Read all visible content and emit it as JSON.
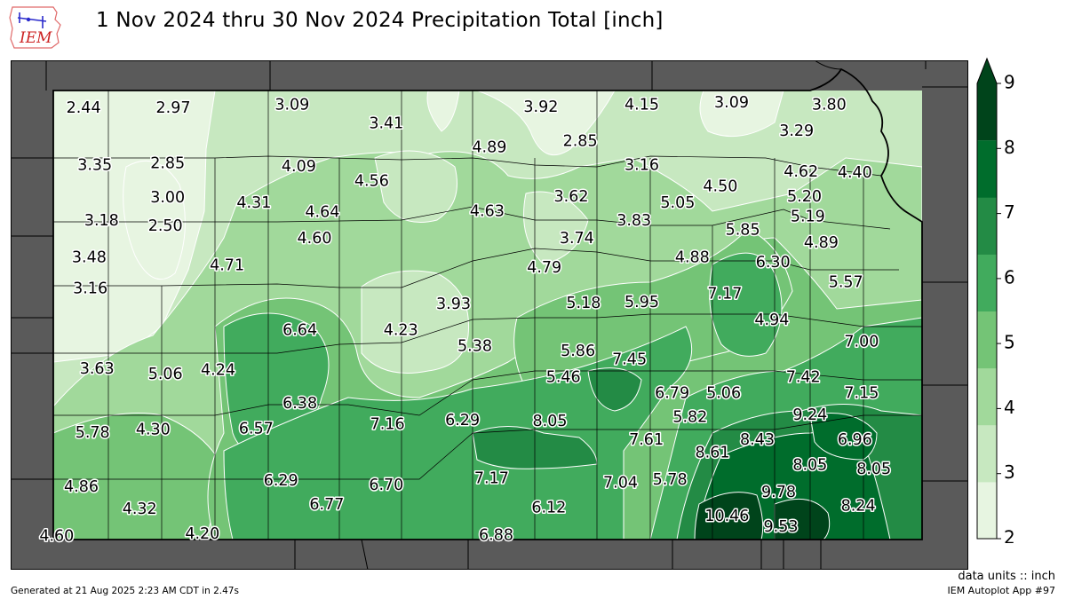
{
  "logo_text": "IEM",
  "title": "1 Nov 2024 thru 30 Nov 2024 Precipitation Total [inch]",
  "units_label": "data units :: inch",
  "generated_text": "Generated at 21 Aug 2025 2:23 AM CDT in 2.47s",
  "app_label": "IEM Autoplot App #97",
  "colors": {
    "background_map": "#5a5a5a",
    "county_lines": "#000000",
    "contour_lines": "#ffffff",
    "colorbar": [
      "#e7f5e1",
      "#c7e8c0",
      "#a1d99b",
      "#74c476",
      "#41ab5d",
      "#238b45",
      "#006d2c",
      "#00441b"
    ]
  },
  "colorbar": {
    "min": 2,
    "max": 9,
    "ticks": [
      "2",
      "3",
      "4",
      "5",
      "6",
      "7",
      "8",
      "9"
    ]
  },
  "values": [
    {
      "text": "2.44",
      "lon": -101.78,
      "lat": 39.83
    },
    {
      "text": "2.97",
      "lon": -100.98,
      "lat": 39.83
    },
    {
      "text": "3.09",
      "lon": -99.92,
      "lat": 39.86
    },
    {
      "text": "3.41",
      "lon": -99.08,
      "lat": 39.68
    },
    {
      "text": "3.92",
      "lon": -97.7,
      "lat": 39.84
    },
    {
      "text": "4.15",
      "lon": -96.8,
      "lat": 39.86
    },
    {
      "text": "3.09",
      "lon": -96.0,
      "lat": 39.88
    },
    {
      "text": "3.80",
      "lon": -95.13,
      "lat": 39.86
    },
    {
      "text": "3.29",
      "lon": -95.42,
      "lat": 39.61
    },
    {
      "text": "2.85",
      "lon": -97.35,
      "lat": 39.51
    },
    {
      "text": "4.89",
      "lon": -98.16,
      "lat": 39.45
    },
    {
      "text": "3.35",
      "lon": -101.68,
      "lat": 39.28
    },
    {
      "text": "2.85",
      "lon": -101.03,
      "lat": 39.3
    },
    {
      "text": "4.09",
      "lon": -99.86,
      "lat": 39.27
    },
    {
      "text": "4.56",
      "lon": -99.21,
      "lat": 39.13
    },
    {
      "text": "3.16",
      "lon": -96.8,
      "lat": 39.28
    },
    {
      "text": "4.62",
      "lon": -95.38,
      "lat": 39.22
    },
    {
      "text": "4.40",
      "lon": -94.9,
      "lat": 39.21
    },
    {
      "text": "4.50",
      "lon": -96.1,
      "lat": 39.08
    },
    {
      "text": "5.20",
      "lon": -95.35,
      "lat": 38.98
    },
    {
      "text": "3.00",
      "lon": -101.03,
      "lat": 38.97
    },
    {
      "text": "4.31",
      "lon": -100.26,
      "lat": 38.92
    },
    {
      "text": "3.62",
      "lon": -97.43,
      "lat": 38.98
    },
    {
      "text": "5.05",
      "lon": -96.48,
      "lat": 38.92
    },
    {
      "text": "4.64",
      "lon": -99.65,
      "lat": 38.83
    },
    {
      "text": "4.63",
      "lon": -98.18,
      "lat": 38.84
    },
    {
      "text": "5.19",
      "lon": -95.32,
      "lat": 38.79
    },
    {
      "text": "3.18",
      "lon": -101.62,
      "lat": 38.75
    },
    {
      "text": "2.50",
      "lon": -101.05,
      "lat": 38.7
    },
    {
      "text": "3.83",
      "lon": -96.87,
      "lat": 38.75
    },
    {
      "text": "5.85",
      "lon": -95.9,
      "lat": 38.66
    },
    {
      "text": "3.74",
      "lon": -97.38,
      "lat": 38.58
    },
    {
      "text": "4.60",
      "lon": -99.72,
      "lat": 38.58
    },
    {
      "text": "4.89",
      "lon": -95.2,
      "lat": 38.54
    },
    {
      "text": "3.48",
      "lon": -101.73,
      "lat": 38.4
    },
    {
      "text": "4.71",
      "lon": -100.5,
      "lat": 38.32
    },
    {
      "text": "4.88",
      "lon": -96.35,
      "lat": 38.4
    },
    {
      "text": "6.30",
      "lon": -95.63,
      "lat": 38.35
    },
    {
      "text": "4.79",
      "lon": -97.67,
      "lat": 38.3
    },
    {
      "text": "5.57",
      "lon": -94.98,
      "lat": 38.16
    },
    {
      "text": "3.16",
      "lon": -101.72,
      "lat": 38.1
    },
    {
      "text": "5.18",
      "lon": -97.32,
      "lat": 37.96
    },
    {
      "text": "5.95",
      "lon": -96.8,
      "lat": 37.97
    },
    {
      "text": "7.17",
      "lon": -96.06,
      "lat": 38.05
    },
    {
      "text": "3.93",
      "lon": -98.48,
      "lat": 37.95
    },
    {
      "text": "6.64",
      "lon": -99.85,
      "lat": 37.7
    },
    {
      "text": "4.23",
      "lon": -98.95,
      "lat": 37.7
    },
    {
      "text": "4.94",
      "lon": -95.64,
      "lat": 37.8
    },
    {
      "text": "7.00",
      "lon": -94.84,
      "lat": 37.59
    },
    {
      "text": "5.38",
      "lon": -98.29,
      "lat": 37.55
    },
    {
      "text": "5.86",
      "lon": -97.37,
      "lat": 37.5
    },
    {
      "text": "7.45",
      "lon": -96.91,
      "lat": 37.42
    },
    {
      "text": "3.63",
      "lon": -101.66,
      "lat": 37.33
    },
    {
      "text": "5.06",
      "lon": -101.05,
      "lat": 37.28
    },
    {
      "text": "4.24",
      "lon": -100.58,
      "lat": 37.32
    },
    {
      "text": "5.46",
      "lon": -97.5,
      "lat": 37.25
    },
    {
      "text": "7.42",
      "lon": -95.36,
      "lat": 37.25
    },
    {
      "text": "6.79",
      "lon": -96.53,
      "lat": 37.1
    },
    {
      "text": "5.06",
      "lon": -96.07,
      "lat": 37.1
    },
    {
      "text": "7.15",
      "lon": -94.84,
      "lat": 37.1
    },
    {
      "text": "6.38",
      "lon": -99.85,
      "lat": 37.0
    },
    {
      "text": "9.24",
      "lon": -95.3,
      "lat": 36.89
    },
    {
      "text": "5.82",
      "lon": -96.37,
      "lat": 36.87
    },
    {
      "text": "8.05",
      "lon": -97.62,
      "lat": 36.83
    },
    {
      "text": "6.29",
      "lon": -98.4,
      "lat": 36.84
    },
    {
      "text": "7.16",
      "lon": -99.07,
      "lat": 36.8
    },
    {
      "text": "6.57",
      "lon": -100.24,
      "lat": 36.76
    },
    {
      "text": "5.78",
      "lon": -101.7,
      "lat": 36.72
    },
    {
      "text": "4.30",
      "lon": -101.16,
      "lat": 36.75
    },
    {
      "text": "8.43",
      "lon": -95.77,
      "lat": 36.65
    },
    {
      "text": "6.96",
      "lon": -94.9,
      "lat": 36.65
    },
    {
      "text": "7.61",
      "lon": -96.76,
      "lat": 36.65
    },
    {
      "text": "8.61",
      "lon": -96.17,
      "lat": 36.53
    },
    {
      "text": "8.05",
      "lon": -95.3,
      "lat": 36.41
    },
    {
      "text": "8.05",
      "lon": -94.73,
      "lat": 36.37
    },
    {
      "text": "6.29",
      "lon": -100.02,
      "lat": 36.26
    },
    {
      "text": "7.17",
      "lon": -98.14,
      "lat": 36.28
    },
    {
      "text": "7.04",
      "lon": -96.99,
      "lat": 36.24
    },
    {
      "text": "5.78",
      "lon": -96.55,
      "lat": 36.27
    },
    {
      "text": "6.70",
      "lon": -99.08,
      "lat": 36.22
    },
    {
      "text": "4.86",
      "lon": -101.8,
      "lat": 36.2
    },
    {
      "text": "9.78",
      "lon": -95.58,
      "lat": 36.15
    },
    {
      "text": "6.77",
      "lon": -99.61,
      "lat": 36.03
    },
    {
      "text": "4.32",
      "lon": -101.28,
      "lat": 35.99
    },
    {
      "text": "6.12",
      "lon": -97.63,
      "lat": 36.0
    },
    {
      "text": "8.24",
      "lon": -94.87,
      "lat": 36.02
    },
    {
      "text": "10.46",
      "lon": -96.04,
      "lat": 35.92
    },
    {
      "text": "9.53",
      "lon": -95.56,
      "lat": 35.82
    },
    {
      "text": "6.88",
      "lon": -98.1,
      "lat": 35.74
    },
    {
      "text": "4.20",
      "lon": -100.72,
      "lat": 35.75
    },
    {
      "text": "4.60",
      "lon": -102.02,
      "lat": 35.73
    }
  ]
}
